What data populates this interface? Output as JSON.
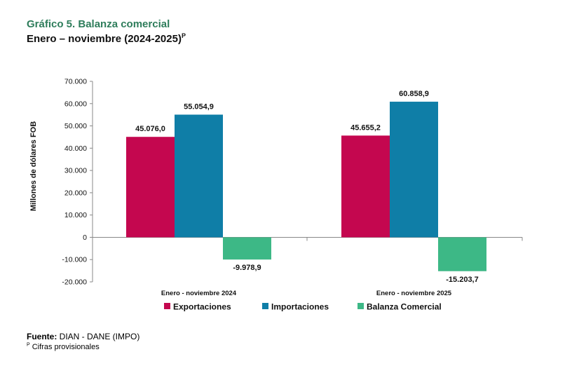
{
  "header": {
    "title_line1": "Gráfico 5. Balanza comercial",
    "title_line2": "Enero – noviembre (2024-2025)",
    "title_sup": "P"
  },
  "footer": {
    "source_label": "Fuente:",
    "source_text": " DIAN - DANE (IMPO)",
    "note_sup": "P",
    "note_text": " Cifras provisionales"
  },
  "chart_data": {
    "type": "bar",
    "ylabel": "Millones de dólares FOB",
    "xlabel": "",
    "ylim": [
      -20000,
      70000
    ],
    "yticks": [
      70000,
      60000,
      50000,
      40000,
      30000,
      20000,
      10000,
      0,
      -10000,
      -20000
    ],
    "ytick_labels": [
      "70.000",
      "60.000",
      "50.000",
      "40.000",
      "30.000",
      "20.000",
      "10.000",
      "0",
      "-10.000",
      "-20.000"
    ],
    "categories": [
      "Enero - noviembre 2024",
      "Enero - noviembre 2025"
    ],
    "series": [
      {
        "name": "Exportaciones",
        "color": "#c4074f",
        "values": [
          45076.0,
          45655.2
        ],
        "labels": [
          "45.076,0",
          "45.655,2"
        ]
      },
      {
        "name": "Importaciones",
        "color": "#0f7ea7",
        "values": [
          55054.9,
          60858.9
        ],
        "labels": [
          "55.054,9",
          "60.858,9"
        ]
      },
      {
        "name": "Balanza Comercial",
        "color": "#3db886",
        "values": [
          -9978.9,
          -15203.7
        ],
        "labels": [
          "-9.978,9",
          "-15.203,7"
        ]
      }
    ],
    "legend_position": "bottom"
  }
}
